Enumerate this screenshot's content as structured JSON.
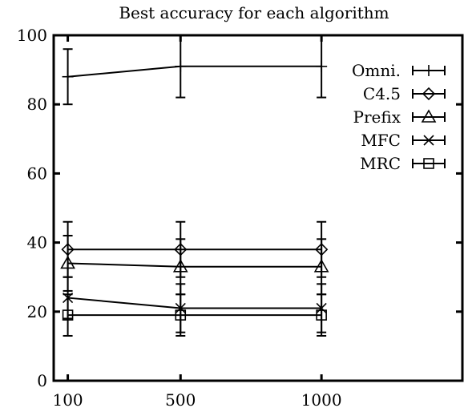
{
  "chart_data": {
    "type": "line",
    "title": "Best accuracy for each algorithm",
    "xlabel": "",
    "ylabel": "",
    "x": [
      100,
      500,
      1000
    ],
    "x_ticks": [
      "100",
      "500",
      "1000"
    ],
    "xlim": [
      50,
      1500
    ],
    "ylim": [
      0,
      100
    ],
    "y_ticks": [
      "0",
      "20",
      "40",
      "60",
      "80",
      "100"
    ],
    "grid": false,
    "legend_position": "top-right",
    "series": [
      {
        "name": "Omni.",
        "marker": "plus",
        "values": [
          88,
          91,
          91
        ],
        "errors": [
          8,
          9,
          9
        ]
      },
      {
        "name": "C4.5",
        "marker": "diamond",
        "values": [
          38,
          38,
          38
        ],
        "errors": [
          8,
          8,
          8
        ]
      },
      {
        "name": "Prefix",
        "marker": "triangle",
        "values": [
          34,
          33,
          33
        ],
        "errors": [
          8,
          8,
          8
        ]
      },
      {
        "name": "MFC",
        "marker": "cross",
        "values": [
          24,
          21,
          21
        ],
        "errors": [
          6,
          7,
          7
        ]
      },
      {
        "name": "MRC",
        "marker": "square",
        "values": [
          19,
          19,
          19
        ],
        "errors": [
          6,
          6,
          6
        ]
      }
    ]
  }
}
